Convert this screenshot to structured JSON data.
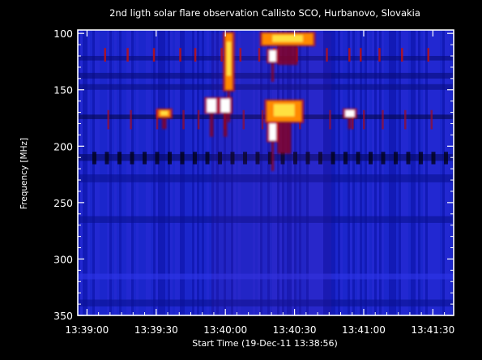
{
  "chart_data": {
    "type": "heatmap",
    "title": "2nd ligth solar flare observation Callisto SCO, Hurbanovo, Slovakia",
    "xlabel": "Start Time (19-Dec-11 13:38:56)",
    "ylabel": "Frequency [MHz]",
    "x_ticks": [
      "13:39:00",
      "13:39:30",
      "13:40:00",
      "13:40:30",
      "13:41:00",
      "13:41:30"
    ],
    "y_ticks": [
      "100",
      "150",
      "200",
      "250",
      "300",
      "350"
    ],
    "xlim": [
      "13:38:56",
      "13:41:39"
    ],
    "ylim": [
      350,
      97
    ],
    "y_inverted": true,
    "background_color": "#1a22c8",
    "colors": {
      "low": "#0a10a0",
      "mid": "#3a1fb0",
      "dark_red": "#8a0020",
      "red": "#d01010",
      "orange": "#ff8a00",
      "yellow": "#ffe040",
      "white": "#ffffff"
    },
    "bursts": [
      {
        "t_start": "13:40:00",
        "t_end": "13:40:03",
        "f_start": 100,
        "f_end": 150,
        "level": "high"
      },
      {
        "t_start": "13:40:16",
        "t_end": "13:40:38",
        "f_start": 100,
        "f_end": 110,
        "level": "high"
      },
      {
        "t_start": "13:40:19",
        "t_end": "13:40:22",
        "f_start": 115,
        "f_end": 125,
        "level": "peak"
      },
      {
        "t_start": "13:39:52",
        "t_end": "13:39:56",
        "f_start": 158,
        "f_end": 170,
        "level": "peak"
      },
      {
        "t_start": "13:39:58",
        "t_end": "13:40:02",
        "f_start": 158,
        "f_end": 170,
        "level": "peak"
      },
      {
        "t_start": "13:40:18",
        "t_end": "13:40:33",
        "f_start": 160,
        "f_end": 178,
        "level": "high"
      },
      {
        "t_start": "13:40:19",
        "t_end": "13:40:22",
        "f_start": 180,
        "f_end": 195,
        "level": "peak"
      },
      {
        "t_start": "13:39:31",
        "t_end": "13:39:36",
        "f_start": 168,
        "f_end": 174,
        "level": "high"
      },
      {
        "t_start": "13:40:52",
        "t_end": "13:40:56",
        "f_start": 168,
        "f_end": 174,
        "level": "peak"
      }
    ]
  }
}
